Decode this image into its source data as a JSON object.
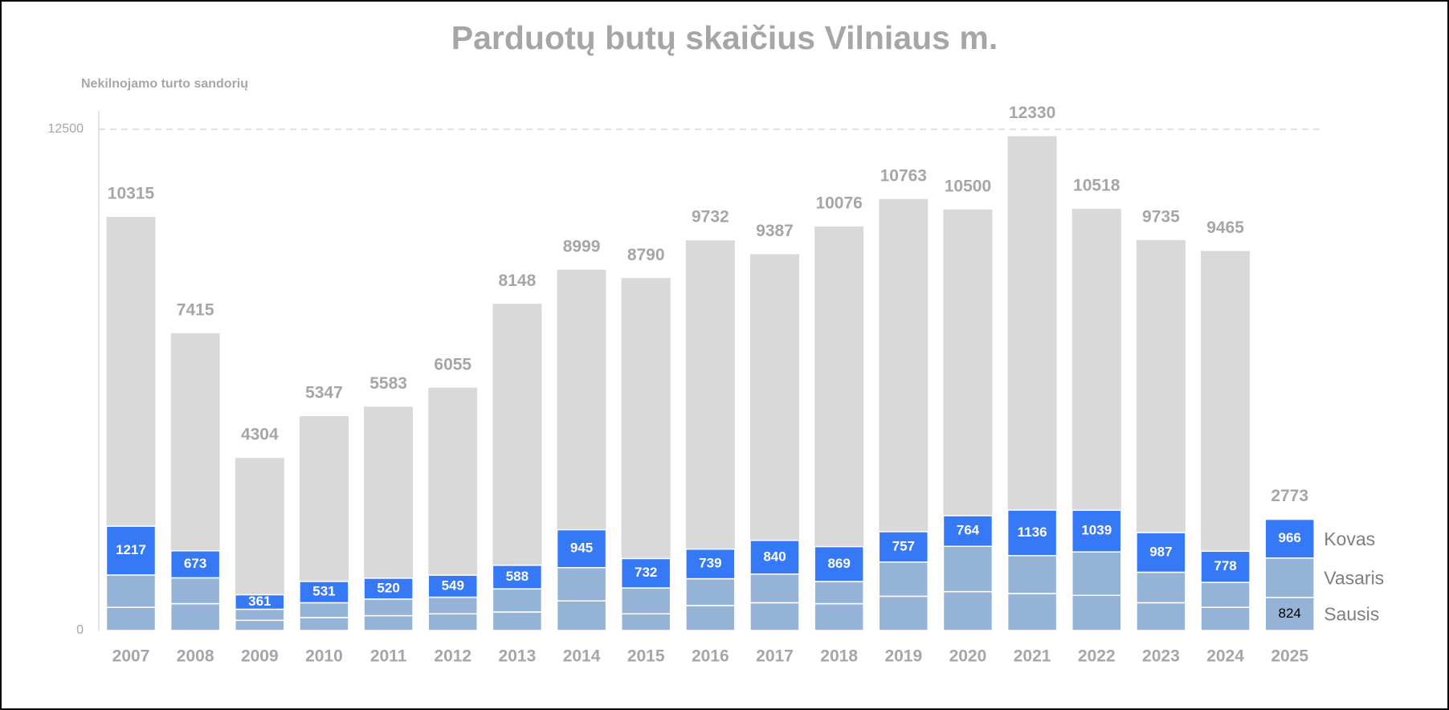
{
  "chart_data": {
    "type": "stacked_bar",
    "title": "Parduotų butų skaičius Vilniaus m.",
    "subtitle": "Nekilnojamo turto sandorių",
    "categories": [
      "2007",
      "2008",
      "2009",
      "2010",
      "2011",
      "2012",
      "2013",
      "2014",
      "2015",
      "2016",
      "2017",
      "2018",
      "2019",
      "2020",
      "2021",
      "2022",
      "2023",
      "2024",
      "2025"
    ],
    "series": [
      {
        "name": "Sausis",
        "color": "#95b3d7",
        "values": [
          577,
          669,
          254,
          323,
          369,
          415,
          461,
          738,
          415,
          623,
          692,
          669,
          853,
          969,
          922,
          876,
          692,
          577,
          824
        ],
        "value_labels": [
          null,
          null,
          null,
          null,
          null,
          null,
          null,
          null,
          null,
          null,
          null,
          null,
          null,
          null,
          null,
          null,
          null,
          null,
          "824"
        ]
      },
      {
        "name": "Vasaris",
        "color": "#95b3d7",
        "values": [
          807,
          645,
          276,
          369,
          415,
          415,
          577,
          830,
          646,
          668,
          715,
          553,
          854,
          1130,
          946,
          1084,
          761,
          622,
          983
        ]
      },
      {
        "name": "Kovas",
        "color": "#3579f6",
        "show_values": true,
        "values": [
          1217,
          673,
          361,
          531,
          520,
          549,
          588,
          945,
          732,
          739,
          840,
          869,
          757,
          764,
          1136,
          1039,
          987,
          778,
          966
        ]
      }
    ],
    "totals": {
      "color": "#d9d9d9",
      "values": [
        10315,
        7415,
        4304,
        5347,
        5583,
        6055,
        8148,
        8999,
        8790,
        9732,
        9387,
        10076,
        10763,
        10500,
        12330,
        10518,
        9735,
        9465,
        2773
      ]
    },
    "ylim": [
      0,
      12500
    ],
    "yticks": [
      0,
      12500
    ],
    "grid": true,
    "legend": "right"
  }
}
